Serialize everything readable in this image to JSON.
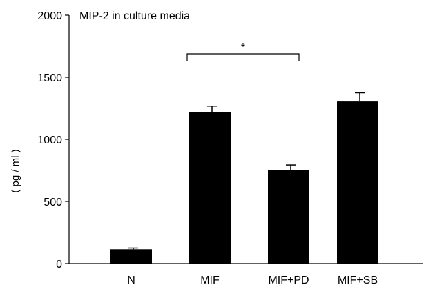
{
  "chart_data": {
    "type": "bar",
    "title": "MIP-2 in culture media",
    "ylabel": "( pg / ml )",
    "xlabel": "",
    "categories": [
      "N",
      "MIF",
      "MIF+PD",
      "MIF+SB"
    ],
    "values": [
      115,
      1220,
      752,
      1305
    ],
    "errors": [
      10,
      48,
      42,
      70
    ],
    "ylim": [
      0,
      2000
    ],
    "yticks": [
      0,
      500,
      1000,
      1500,
      2000
    ],
    "significance": {
      "from": "MIF",
      "to": "MIF+PD",
      "label": "*"
    },
    "grid": false,
    "bar_color": "#000000"
  }
}
